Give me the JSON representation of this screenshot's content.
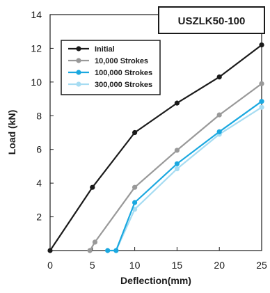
{
  "chart_data": {
    "type": "line",
    "title": "",
    "xlabel": "Deflection(mm)",
    "ylabel": "Load (kN)",
    "xlim": [
      0,
      25
    ],
    "ylim": [
      0,
      14
    ],
    "xticks": [
      0,
      5,
      10,
      15,
      20,
      25
    ],
    "yticks": [
      2,
      4,
      6,
      8,
      10,
      12,
      14
    ],
    "grid": false,
    "legend": "top-left",
    "annotation": "USZLK50-100",
    "series": [
      {
        "name": "Initial",
        "color": "#1a1a1a",
        "points": [
          [
            0,
            0
          ],
          [
            5,
            3.75
          ],
          [
            10,
            7.0
          ],
          [
            15,
            8.75
          ],
          [
            20,
            10.3
          ],
          [
            25,
            12.2
          ]
        ]
      },
      {
        "name": "10,000 Strokes",
        "color": "#999999",
        "points": [
          [
            4.7,
            0
          ],
          [
            5.3,
            0.5
          ],
          [
            10,
            3.75
          ],
          [
            15,
            5.95
          ],
          [
            20,
            8.05
          ],
          [
            25,
            9.9
          ]
        ]
      },
      {
        "name": "100,000 Strokes",
        "color": "#1aa8e0",
        "points": [
          [
            6.8,
            0
          ],
          [
            7.8,
            0
          ],
          [
            10,
            2.85
          ],
          [
            15,
            5.15
          ],
          [
            20,
            7.05
          ],
          [
            25,
            8.85
          ]
        ]
      },
      {
        "name": "300,000 Strokes",
        "color": "#a6dcf2",
        "points": [
          [
            7.8,
            0
          ],
          [
            10,
            2.45
          ],
          [
            15,
            4.85
          ],
          [
            20,
            6.9
          ],
          [
            25,
            8.5
          ]
        ]
      }
    ]
  }
}
